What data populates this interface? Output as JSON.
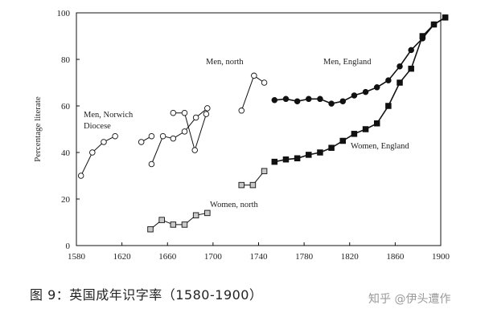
{
  "chart_data": {
    "type": "line",
    "title": "",
    "xlabel": "",
    "ylabel": "Percentage literate",
    "xlim": [
      1580,
      1900
    ],
    "ylim": [
      0,
      100
    ],
    "xticks": [
      1580,
      1620,
      1660,
      1700,
      1740,
      1780,
      1820,
      1860,
      1900
    ],
    "yticks": [
      0,
      20,
      40,
      60,
      80,
      100
    ],
    "grid": false,
    "legend": "none",
    "series": [
      {
        "name": "Men, Norwich Diocese",
        "name_lines": [
          "Men, Norwich",
          "Diocese"
        ],
        "marker": "circle-open",
        "segments": [
          [
            [
              1584,
              30
            ],
            [
              1594,
              40
            ],
            [
              1604,
              44.5
            ],
            [
              1614,
              47
            ]
          ],
          [
            [
              1637,
              44.5
            ],
            [
              1646,
              47
            ]
          ],
          [
            [
              1646,
              35
            ],
            [
              1656,
              47
            ],
            [
              1665,
              46
            ],
            [
              1675,
              49
            ],
            [
              1685,
              55
            ],
            [
              1695,
              59
            ]
          ],
          [
            [
              1665,
              57
            ],
            [
              1675,
              57
            ],
            [
              1684,
              41
            ],
            [
              1694,
              56.5
            ]
          ]
        ]
      },
      {
        "name": "Men, north",
        "marker": "circle-open",
        "segments": [
          [
            [
              1725,
              58
            ],
            [
              1736,
              73
            ],
            [
              1745,
              70
            ]
          ]
        ]
      },
      {
        "name": "Men, England",
        "marker": "circle-filled",
        "segments": [
          [
            [
              1754,
              62.5
            ],
            [
              1764,
              63
            ],
            [
              1774,
              62
            ],
            [
              1784,
              63
            ],
            [
              1794,
              63
            ],
            [
              1804,
              61
            ],
            [
              1814,
              62
            ],
            [
              1824,
              64.5
            ],
            [
              1834,
              66
            ],
            [
              1844,
              68
            ],
            [
              1854,
              71
            ],
            [
              1864,
              77
            ],
            [
              1874,
              84
            ],
            [
              1884,
              89
            ],
            [
              1894,
              95
            ],
            [
              1904,
              98
            ]
          ]
        ]
      },
      {
        "name": "Women, north",
        "marker": "square-open",
        "segments": [
          [
            [
              1645,
              7
            ],
            [
              1655,
              11
            ],
            [
              1665,
              9
            ],
            [
              1675,
              9
            ],
            [
              1685,
              13
            ],
            [
              1695,
              14
            ]
          ],
          [
            [
              1725,
              26
            ],
            [
              1735,
              26
            ],
            [
              1745,
              32
            ]
          ]
        ]
      },
      {
        "name": "Women, England",
        "marker": "square-filled",
        "segments": [
          [
            [
              1754,
              36
            ],
            [
              1764,
              37
            ],
            [
              1774,
              37.5
            ],
            [
              1784,
              39
            ],
            [
              1794,
              40
            ],
            [
              1804,
              42
            ],
            [
              1814,
              45
            ],
            [
              1824,
              48
            ],
            [
              1834,
              50
            ],
            [
              1844,
              52.5
            ],
            [
              1854,
              60
            ],
            [
              1864,
              70
            ],
            [
              1874,
              76
            ],
            [
              1884,
              90
            ],
            [
              1894,
              95
            ],
            [
              1904,
              98
            ]
          ]
        ]
      }
    ]
  },
  "caption": "图 9：英国成年识字率（1580-1900）",
  "watermark": "知乎 @伊头遭作"
}
